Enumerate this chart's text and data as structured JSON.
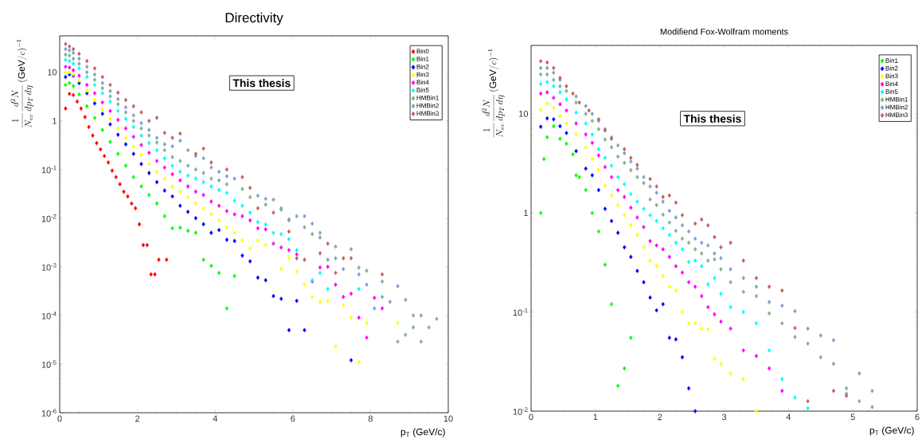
{
  "chart_data": [
    {
      "type": "scatter",
      "title": "Directivity",
      "xlabel": "p$_{T}$ (GeV/c)",
      "ylabel": "\\frac{1}{N_{ev}}\\frac{d^{2}N}{dp_{T}\\,d\\eta}\\,(\\mathrm{GeV}/c)^{-1}",
      "annotations": [
        "This thesis"
      ],
      "log": "y",
      "marker": "diamond",
      "legend": "top right",
      "xlim": [
        0,
        10
      ],
      "xticks": [
        0,
        2,
        4,
        6,
        8,
        10
      ],
      "ylim": [
        1e-06,
        56
      ],
      "yticks": [
        {
          "value": 1e-06,
          "label": "10$^{-6}$"
        },
        {
          "value": 1e-05,
          "label": "10$^{-5}$"
        },
        {
          "value": 0.0001,
          "label": "10$^{-4}$"
        },
        {
          "value": 0.001,
          "label": "10$^{-3}$"
        },
        {
          "value": 0.01,
          "label": "10$^{-2}$"
        },
        {
          "value": 0.1,
          "label": "10$^{-1}$"
        },
        1,
        10
      ],
      "series": [
        {
          "name": "Bin0",
          "color": "#ff0000",
          "x": [
            0.15,
            0.25,
            0.35,
            0.45,
            0.55,
            0.65,
            0.75,
            0.85,
            0.95,
            1.05,
            1.15,
            1.25,
            1.35,
            1.45,
            1.55,
            1.65,
            1.75,
            1.85,
            1.95,
            2.05,
            2.15,
            2.25,
            2.35,
            2.45,
            2.55,
            2.75
          ],
          "values": [
            1.8,
            3.6,
            3.4,
            2.5,
            1.8,
            1.2,
            0.75,
            0.5,
            0.35,
            0.26,
            0.19,
            0.14,
            0.095,
            0.07,
            0.05,
            0.035,
            0.028,
            0.02,
            0.016,
            0.0075,
            0.0028,
            0.0028,
            0.0007,
            0.0007,
            0.0014,
            0.0014
          ]
        },
        {
          "name": "Bin1",
          "color": "#00ff00",
          "x": [
            0.15,
            0.25,
            0.35,
            0.5,
            0.7,
            0.9,
            1.1,
            1.3,
            1.5,
            1.7,
            1.9,
            2.1,
            2.3,
            2.5,
            2.7,
            2.9,
            3.1,
            3.3,
            3.5,
            3.7,
            3.9,
            4.1,
            4.3,
            4.5
          ],
          "values": [
            5.5,
            6,
            5.2,
            3.5,
            2.0,
            1.15,
            0.65,
            0.37,
            0.21,
            0.12,
            0.07,
            0.045,
            0.03,
            0.02,
            0.011,
            0.0062,
            0.0064,
            0.0055,
            0.005,
            0.0014,
            0.00105,
            0.00075,
            0.00014,
            0.00065
          ]
        },
        {
          "name": "Bin2",
          "color": "#0000ff",
          "x": [
            0.15,
            0.25,
            0.35,
            0.5,
            0.7,
            0.9,
            1.1,
            1.3,
            1.5,
            1.7,
            1.9,
            2.1,
            2.3,
            2.5,
            2.7,
            2.9,
            3.1,
            3.3,
            3.5,
            3.7,
            3.9,
            4.1,
            4.3,
            4.5,
            4.7,
            4.9,
            5.1,
            5.3,
            5.5,
            5.7,
            5.9,
            6.1,
            6.3,
            7.5
          ],
          "values": [
            8,
            9,
            8.5,
            6,
            3.7,
            2.3,
            1.4,
            0.85,
            0.52,
            0.33,
            0.21,
            0.13,
            0.085,
            0.055,
            0.037,
            0.028,
            0.018,
            0.0135,
            0.01,
            0.0075,
            0.005,
            0.0057,
            0.0036,
            0.0034,
            0.0017,
            0.0013,
            0.0006,
            0.00053,
            0.00025,
            0.00022,
            5e-05,
            0.0002,
            5e-05,
            1.2e-05
          ]
        },
        {
          "name": "Bin3",
          "color": "#ffff00",
          "x": [
            0.15,
            0.25,
            0.35,
            0.5,
            0.7,
            0.9,
            1.1,
            1.3,
            1.5,
            1.7,
            1.9,
            2.1,
            2.3,
            2.5,
            2.7,
            2.9,
            3.1,
            3.3,
            3.5,
            3.7,
            3.9,
            4.1,
            4.3,
            4.5,
            4.7,
            4.9,
            5.1,
            5.3,
            5.7,
            5.9,
            6.1,
            6.3,
            6.5,
            6.7,
            6.9,
            7.1,
            7.3,
            7.5,
            7.7,
            7.9,
            8.7
          ],
          "values": [
            10,
            10,
            9,
            6.8,
            4.2,
            2.7,
            1.7,
            1.1,
            0.7,
            0.45,
            0.3,
            0.2,
            0.13,
            0.09,
            0.065,
            0.045,
            0.035,
            0.027,
            0.02,
            0.016,
            0.012,
            0.009,
            0.0065,
            0.005,
            0.0035,
            0.0024,
            0.0035,
            0.0028,
            0.0009,
            0.0015,
            0.0008,
            0.00043,
            0.00024,
            0.00019,
            0.0002,
            2.3e-05,
            0.00016,
            9e-05,
            1.1e-05,
            7e-05,
            7e-05
          ]
        },
        {
          "name": "Bin4",
          "color": "#ff00ff",
          "x": [
            0.15,
            0.25,
            0.35,
            0.5,
            0.7,
            0.9,
            1.1,
            1.3,
            1.5,
            1.7,
            1.9,
            2.1,
            2.3,
            2.5,
            2.7,
            2.9,
            3.1,
            3.3,
            3.5,
            3.7,
            3.9,
            4.1,
            4.3,
            4.5,
            4.7,
            4.9,
            5.1,
            5.3,
            5.5,
            5.7,
            5.9,
            6.1,
            6.5,
            6.7,
            6.9,
            7.1,
            7.3,
            7.5,
            7.7,
            7.9,
            8.1,
            8.3
          ],
          "values": [
            13,
            12.5,
            11,
            8.5,
            5.5,
            3.7,
            2.4,
            1.6,
            1.05,
            0.7,
            0.47,
            0.32,
            0.22,
            0.15,
            0.11,
            0.08,
            0.06,
            0.045,
            0.035,
            0.03,
            0.022,
            0.018,
            0.014,
            0.012,
            0.011,
            0.009,
            0.0062,
            0.0059,
            0.003,
            0.0025,
            0.0022,
            0.0018,
            0.0005,
            0.00097,
            0.001,
            0.00043,
            0.00024,
            0.00028,
            9e-05,
            3.5e-05,
            0.00023,
            0.00014
          ]
        },
        {
          "name": "Bin5",
          "color": "#00ffff",
          "x": [
            0.15,
            0.25,
            0.35,
            0.5,
            0.7,
            0.9,
            1.1,
            1.3,
            1.5,
            1.7,
            1.9,
            2.1,
            2.3,
            2.5,
            2.7,
            2.9,
            3.1,
            3.3,
            3.5,
            3.7,
            3.9,
            4.1,
            4.3,
            4.5,
            4.7,
            4.9,
            5.1,
            5.3,
            5.5,
            5.7,
            5.9,
            6.1,
            6.5,
            6.7,
            6.9,
            7.7
          ],
          "values": [
            18,
            17,
            15,
            12,
            8,
            5.5,
            3.7,
            2.5,
            1.6,
            1.1,
            0.75,
            0.5,
            0.35,
            0.25,
            0.17,
            0.12,
            0.09,
            0.075,
            0.065,
            0.055,
            0.045,
            0.038,
            0.033,
            0.023,
            0.018,
            0.013,
            0.0083,
            0.0074,
            0.005,
            0.0047,
            0.0037,
            0.0022,
            0.00053,
            0.00075,
            0.00035,
            0.00035
          ]
        },
        {
          "name": "HMBin1",
          "color": "#80b090",
          "x": [
            0.15,
            0.25,
            0.35,
            0.5,
            0.7,
            0.9,
            1.1,
            1.3,
            1.5,
            1.7,
            1.9,
            2.1,
            2.3,
            2.5,
            2.7,
            2.9,
            3.1,
            3.3,
            3.5,
            3.7,
            3.9,
            4.1,
            4.3,
            4.7,
            4.9,
            5.3,
            5.7,
            5.9,
            6.3,
            6.5,
            6.7,
            7.1,
            7.7,
            7.9,
            8.3,
            8.5,
            8.7,
            8.9,
            9.1,
            9.3,
            9.5,
            9.7
          ],
          "values": [
            23,
            22,
            19,
            15,
            10,
            7,
            4.7,
            3.2,
            2.2,
            1.5,
            1.0,
            0.7,
            0.5,
            0.36,
            0.25,
            0.18,
            0.15,
            0.12,
            0.1,
            0.085,
            0.065,
            0.06,
            0.05,
            0.04,
            0.027,
            0.019,
            0.016,
            0.009,
            0.0065,
            0.0047,
            0.005,
            0.0026,
            0.00096,
            0.00083,
            0.00024,
            null,
            2.9e-05,
            4e-05,
            5.7e-05,
            2.9e-05,
            5.7e-05,
            8.5e-05
          ]
        },
        {
          "name": "HMBin2",
          "color": "#809ed0",
          "x": [
            0.15,
            0.25,
            0.35,
            0.5,
            0.7,
            0.9,
            1.1,
            1.3,
            1.5,
            1.7,
            1.9,
            2.1,
            2.3,
            2.5,
            2.7,
            2.9,
            3.1,
            3.3,
            3.5,
            3.7,
            3.9,
            4.1,
            4.3,
            4.5,
            5.1,
            5.3,
            5.5,
            5.7,
            5.9,
            6.1,
            6.3,
            6.5,
            6.7,
            6.9,
            7.1,
            7.3,
            7.5,
            7.7,
            7.9,
            8.1,
            8.3,
            8.5,
            8.7,
            8.9,
            9.1,
            9.3
          ],
          "values": [
            30,
            28,
            25,
            19,
            13,
            9,
            6,
            4.1,
            2.8,
            1.9,
            1.3,
            0.9,
            0.65,
            0.45,
            0.33,
            0.3,
            0.39,
            0.25,
            0.19,
            0.17,
            0.11,
            0.09,
            0.073,
            0.065,
            0.029,
            0.025,
            0.024,
            0.015,
            0.0095,
            0.011,
            0.011,
            0.0077,
            0.004,
            0.0014,
            0.0015,
            0.0009,
            0.0023,
            0.0007,
            0.00043,
            0.00014,
            0.0005,
            0.00019,
            0.0004,
            0.00021,
            0.0001,
            0.0001
          ]
        },
        {
          "name": "HMBin3",
          "color": "#c06060",
          "x": [
            0.15,
            0.25,
            0.35,
            0.5,
            0.7,
            0.9,
            1.1,
            1.3,
            1.5,
            1.7,
            1.9,
            2.1,
            2.3,
            2.5,
            2.7,
            2.9,
            3.1,
            3.5,
            3.7,
            3.9,
            4.3,
            4.7,
            4.9,
            5.1,
            5.5,
            5.9,
            6.1,
            6.3,
            6.7,
            6.9,
            7.1,
            7.3,
            7.5,
            8.3
          ],
          "values": [
            38,
            34,
            30,
            24,
            17,
            12,
            8,
            5.5,
            3.8,
            2.7,
            2.0,
            1.5,
            1.0,
            1.16,
            0.57,
            0.45,
            0.55,
            0.21,
            0.27,
            0.14,
            0.1,
            0.07,
            0.042,
            0.016,
            0.013,
            0.0053,
            0.0015,
            0.0014,
            0.0019,
            0.003,
            0.00075,
            0.0015,
            0.0015,
            0.0007
          ]
        }
      ]
    },
    {
      "type": "scatter",
      "title": "Modifiend Fox-Wolfram moments",
      "xlabel": "p$_{T}$ (GeV/c)",
      "ylabel": "\\frac{1}{N_{ev}}\\frac{d^{2}N}{dp_{T}\\,d\\eta}\\,(\\mathrm{GeV}/c)^{-1}",
      "annotations": [
        "This thesis"
      ],
      "log": "y",
      "marker": "diamond",
      "legend": "top right",
      "xlim": [
        0,
        6
      ],
      "xticks": [
        0,
        1,
        2,
        3,
        4,
        5,
        6
      ],
      "ylim": [
        0.01,
        49
      ],
      "yticks": [
        {
          "value": 0.01,
          "label": "10$^{-2}$"
        },
        {
          "value": 0.1,
          "label": "10$^{-1}$"
        },
        1,
        10
      ],
      "series": [
        {
          "name": "Bin1",
          "color": "#00ff00",
          "x": [
            0.15,
            0.2,
            0.25,
            0.35,
            0.45,
            0.55,
            0.65,
            0.7,
            0.75,
            0.85,
            0.95,
            1.05,
            1.15,
            1.25,
            1.35,
            1.45,
            1.55
          ],
          "values": [
            1.0,
            3.5,
            5.8,
            7.5,
            5.6,
            5,
            3.9,
            2.4,
            2.3,
            1.7,
            1.0,
            0.65,
            0.3,
            0.12,
            0.018,
            0.027,
            0.055
          ]
        },
        {
          "name": "Bin2",
          "color": "#0000ff",
          "x": [
            0.15,
            0.25,
            0.35,
            0.45,
            0.55,
            0.7,
            0.85,
            0.95,
            1.05,
            1.15,
            1.25,
            1.35,
            1.45,
            1.55,
            1.65,
            1.75,
            1.85,
            1.95,
            2.05,
            2.15,
            2.25,
            2.35,
            2.45,
            2.55
          ],
          "values": [
            7.4,
            9,
            8.8,
            7.5,
            6.4,
            4.2,
            2.8,
            2.4,
            1.7,
            1.1,
            0.83,
            0.63,
            0.45,
            0.36,
            0.26,
            0.2,
            0.14,
            0.104,
            0.12,
            0.055,
            0.053,
            0.035,
            0.017,
            0.01
          ]
        },
        {
          "name": "Bin3",
          "color": "#ffff00",
          "x": [
            0.15,
            0.25,
            0.35,
            0.45,
            0.55,
            0.7,
            0.85,
            0.95,
            1.05,
            1.15,
            1.25,
            1.35,
            1.45,
            1.55,
            1.65,
            1.75,
            1.85,
            1.95,
            2.05,
            2.15,
            2.25,
            2.35,
            2.45,
            2.55,
            2.65,
            2.75,
            2.85,
            2.95,
            3.1,
            3.3,
            3.5
          ],
          "values": [
            11,
            12.7,
            11.5,
            9.5,
            8,
            6.2,
            4.6,
            3.5,
            2.7,
            1.9,
            1.5,
            1.2,
            0.95,
            0.75,
            0.6,
            0.45,
            0.33,
            0.29,
            0.23,
            0.18,
            0.165,
            0.1,
            0.077,
            0.077,
            0.068,
            0.067,
            0.034,
            0.03,
            0.024,
            0.021,
            0.01
          ]
        },
        {
          "name": "Bin4",
          "color": "#ff00ff",
          "x": [
            0.15,
            0.25,
            0.35,
            0.45,
            0.55,
            0.7,
            0.85,
            0.95,
            1.05,
            1.15,
            1.25,
            1.35,
            1.45,
            1.55,
            1.65,
            1.75,
            1.85,
            1.95,
            2.05,
            2.15,
            2.25,
            2.35,
            2.45,
            2.55,
            2.65,
            2.75,
            2.85,
            2.95,
            3.1,
            3.3,
            3.5,
            3.7,
            3.9
          ],
          "values": [
            16,
            16.5,
            14.5,
            12.5,
            10.8,
            8,
            6.2,
            5.1,
            3.8,
            2.9,
            2.3,
            1.7,
            1.45,
            1.13,
            0.9,
            0.72,
            0.52,
            0.47,
            0.43,
            0.36,
            0.29,
            0.25,
            0.2,
            0.18,
            0.145,
            0.112,
            0.095,
            0.08,
            0.068,
            0.041,
            0.036,
            0.027,
            0.016
          ]
        },
        {
          "name": "Bin5",
          "color": "#00ffff",
          "x": [
            0.15,
            0.25,
            0.35,
            0.45,
            0.55,
            0.7,
            0.85,
            0.95,
            1.05,
            1.15,
            1.25,
            1.35,
            1.45,
            1.55,
            1.65,
            1.75,
            1.85,
            1.95,
            2.05,
            2.15,
            2.25,
            2.35,
            2.45,
            2.55,
            2.65,
            2.75,
            2.85,
            2.95,
            3.1,
            3.3,
            3.5,
            3.7,
            3.9,
            4.1,
            4.3
          ],
          "values": [
            20,
            21,
            19,
            16.5,
            14,
            10.3,
            8,
            6.2,
            4.4,
            3.6,
            3.0,
            2.3,
            1.95,
            1.55,
            1.3,
            1.1,
            0.95,
            0.83,
            0.7,
            0.6,
            0.5,
            0.43,
            0.32,
            0.33,
            0.29,
            0.19,
            0.22,
            0.153,
            0.112,
            0.1,
            0.077,
            0.041,
            0.021,
            0.0137,
            0.0107
          ]
        },
        {
          "name": "HMBin1",
          "color": "#80b090",
          "x": [
            0.15,
            0.25,
            0.35,
            0.45,
            0.55,
            0.7,
            0.85,
            0.95,
            1.05,
            1.15,
            1.25,
            1.35,
            1.45,
            1.55,
            1.65,
            1.75,
            1.85,
            1.95,
            2.05,
            2.15,
            2.25,
            2.35,
            2.45,
            2.55,
            2.65,
            2.75,
            2.85,
            2.95,
            3.1,
            3.3,
            3.5,
            3.7,
            3.9,
            4.1,
            4.3,
            4.5,
            4.7,
            4.9,
            5.1,
            5.3
          ],
          "values": [
            25,
            25,
            22,
            19,
            17,
            13,
            10,
            8.5,
            7,
            5.5,
            4.6,
            3.7,
            3.2,
            2.7,
            2.3,
            2.0,
            1.37,
            1.2,
            0.96,
            0.8,
            0.66,
            0.55,
            0.5,
            0.43,
            0.39,
            0.33,
            0.34,
            0.27,
            0.2,
            0.16,
            0.145,
            0.097,
            0.077,
            0.056,
            0.048,
            0.035,
            0.03,
            0.017,
            0.0126,
            0.011
          ]
        },
        {
          "name": "HMBin2",
          "color": "#809ed0",
          "x": [
            0.15,
            0.25,
            0.35,
            0.45,
            0.55,
            0.7,
            0.85,
            0.95,
            1.05,
            1.15,
            1.25,
            1.35,
            1.45,
            1.55,
            1.65,
            1.75,
            1.85,
            1.95,
            2.05,
            2.15,
            2.25,
            2.35,
            2.45,
            2.55,
            2.65,
            2.75,
            2.85,
            2.95,
            3.1,
            3.3,
            3.5,
            3.7,
            3.9,
            4.1,
            4.3,
            4.5,
            4.7,
            4.9,
            5.1,
            5.3
          ],
          "values": [
            29,
            29,
            26,
            22,
            null,
            15,
            12,
            10,
            8.5,
            7,
            5.8,
            4.8,
            4.0,
            3.3,
            2.8,
            2.3,
            1.85,
            1.6,
            1.3,
            1.05,
            0.9,
            0.75,
            0.65,
            0.55,
            0.5,
            0.47,
            0.39,
            0.35,
            0.27,
            0.22,
            0.18,
            0.126,
            0.116,
            0.102,
            0.068,
            0.058,
            0.052,
            0.015,
            0.024,
            0.016
          ]
        },
        {
          "name": "HMBin3",
          "color": "#c06060",
          "x": [
            0.15,
            0.25,
            0.35,
            0.45,
            0.55,
            0.65,
            0.75,
            0.9,
            1.05,
            1.15,
            1.25,
            1.45,
            1.55,
            1.65,
            1.85,
            1.95,
            2.05,
            2.15,
            2.25,
            2.35,
            2.55,
            2.65,
            2.75,
            2.85,
            2.95,
            3.1,
            3.3,
            3.5,
            3.7,
            3.9,
            4.1,
            4.3,
            4.7,
            4.9
          ],
          "values": [
            34,
            33,
            29,
            23,
            19,
            16,
            13,
            10.8,
            8.8,
            6.8,
            5.6,
            4.4,
            3.6,
            3.05,
            2.2,
            1.85,
            1.45,
            1.5,
            1.27,
            0.95,
            0.78,
            0.86,
            0.75,
            0.57,
            0.45,
            0.5,
            0.33,
            0.22,
            0.18,
            0.165,
            0.069,
            0.0126,
            0.016,
            0.0143
          ]
        }
      ]
    }
  ]
}
